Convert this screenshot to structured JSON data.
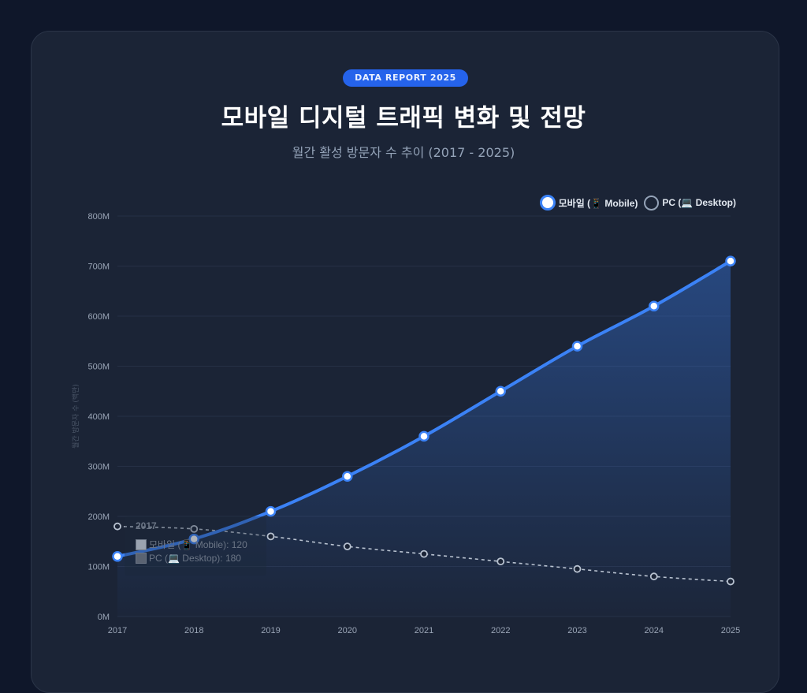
{
  "header": {
    "badge": "DATA REPORT 2025",
    "title": "모바일 디지털 트래픽 변화 및 전망",
    "subtitle": "월간 활성 방문자 수 추이 (2017 - 2025)"
  },
  "legend": {
    "mobile_label": "모바일 (📱 Mobile)",
    "pc_label": "PC (💻 Desktop)"
  },
  "tooltip": {
    "title": "2017",
    "mobile_row": "모바일 (📱 Mobile): 120",
    "pc_row": "PC (💻 Desktop): 180"
  },
  "colors": {
    "mobile": "#3b82f6",
    "pc": "#94a3b8",
    "background": "#0f172a",
    "card": "#1b2436",
    "badge": "#2563eb"
  },
  "chart_data": {
    "type": "line",
    "title": "모바일 디지털 트래픽 변화 및 전망",
    "subtitle": "월간 활성 방문자 수 추이 (2017 - 2025)",
    "xlabel": "",
    "ylabel": "월간 방문자 수 (백만)",
    "categories": [
      "2017",
      "2018",
      "2019",
      "2020",
      "2021",
      "2022",
      "2023",
      "2024",
      "2025"
    ],
    "series": [
      {
        "name": "모바일 (📱 Mobile)",
        "values": [
          120,
          155,
          210,
          280,
          360,
          450,
          540,
          620,
          710
        ],
        "style": "solid, filled area"
      },
      {
        "name": "PC (💻 Desktop)",
        "values": [
          180,
          175,
          160,
          140,
          125,
          110,
          95,
          80,
          70
        ],
        "style": "dashed"
      }
    ],
    "ylim": [
      0,
      800
    ],
    "yticks": [
      "0M",
      "100M",
      "200M",
      "300M",
      "400M",
      "500M",
      "600M",
      "700M",
      "800M"
    ],
    "grid": true,
    "legend_position": "top-right"
  }
}
